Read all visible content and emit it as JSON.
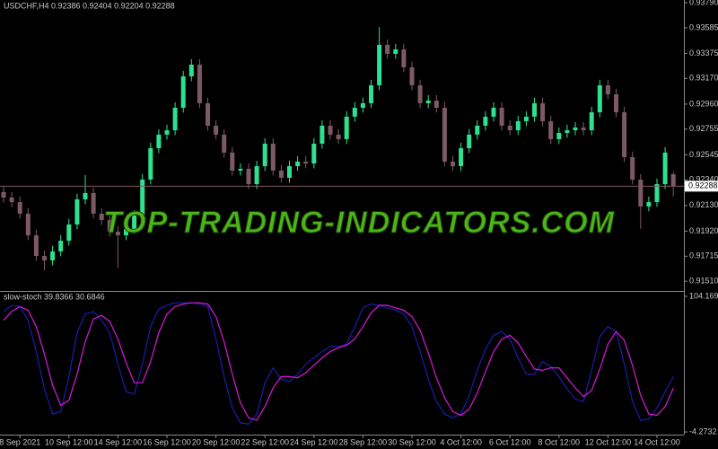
{
  "chart_data": [
    {
      "type": "candlestick",
      "title": "USDCHF,H4 0.92386 0.92404 0.92204 0.92288",
      "watermark": "TOP-TRADING-INDICATORS.COM",
      "categories": [
        null,
        null,
        "8 Sep 2021",
        null,
        null,
        null,
        null,
        null,
        "10 Sep 12:00",
        null,
        null,
        null,
        null,
        null,
        "14 Sep 12:00",
        null,
        null,
        null,
        null,
        null,
        "16 Sep 12:00",
        null,
        null,
        null,
        null,
        null,
        "20 Sep 12:00",
        null,
        null,
        null,
        null,
        null,
        "22 Sep 12:00",
        null,
        null,
        null,
        null,
        null,
        "24 Sep 12:00",
        null,
        null,
        null,
        null,
        null,
        "28 Sep 12:00",
        null,
        null,
        null,
        null,
        null,
        "30 Sep 12:00",
        null,
        null,
        null,
        null,
        null,
        "4 Oct 12:00",
        null,
        null,
        null,
        null,
        null,
        "6 Oct 12:00",
        null,
        null,
        null,
        null,
        null,
        "8 Oct 12:00",
        null,
        null,
        null,
        null,
        null,
        "12 Oct 12:00",
        null,
        null,
        null,
        null,
        null,
        "14 Oct 12:00",
        null,
        null
      ],
      "open": [
        0.9224,
        0.92195,
        0.92158,
        0.92063,
        0.91886,
        0.91717,
        0.91681,
        0.91754,
        0.91842,
        0.91975,
        0.9218,
        0.92232,
        0.92063,
        0.92011,
        0.91916,
        0.91886,
        0.91938,
        0.92048,
        0.92342,
        0.92599,
        0.9271,
        0.92746,
        0.9293,
        0.93187,
        0.93283,
        0.92967,
        0.92783,
        0.9271,
        0.92563,
        0.92416,
        0.9243,
        0.92305,
        0.92452,
        0.92636,
        0.92416,
        0.92357,
        0.92452,
        0.92489,
        0.92474,
        0.92636,
        0.92783,
        0.9271,
        0.92673,
        0.92857,
        0.9293,
        0.92967,
        0.93114,
        0.93445,
        0.93371,
        0.93408,
        0.93261,
        0.93114,
        0.92967,
        0.92989,
        0.9293,
        0.92489,
        0.92452,
        0.92599,
        0.9271,
        0.92783,
        0.92857,
        0.9293,
        0.92783,
        0.92746,
        0.9282,
        0.92857,
        0.92967,
        0.9282,
        0.92673,
        0.92724,
        0.92746,
        0.92768,
        0.92746,
        0.92893,
        0.93114,
        0.9304,
        0.92893,
        0.92526,
        0.92342,
        0.92122,
        0.92158,
        0.92305,
        0.92386
      ],
      "high": [
        0.92285,
        0.9224,
        0.92203,
        0.92108,
        0.91931,
        0.91762,
        0.91799,
        0.91887,
        0.9202,
        0.92225,
        0.9238,
        0.92277,
        0.92108,
        0.92056,
        0.91961,
        0.91983,
        0.92093,
        0.92387,
        0.92644,
        0.92755,
        0.92791,
        0.92975,
        0.93232,
        0.93328,
        0.93328,
        0.93012,
        0.92828,
        0.92755,
        0.92608,
        0.92475,
        0.92475,
        0.92497,
        0.92681,
        0.92681,
        0.92461,
        0.92497,
        0.92534,
        0.92534,
        0.92681,
        0.92828,
        0.92828,
        0.92755,
        0.92902,
        0.92975,
        0.93012,
        0.93159,
        0.9359,
        0.9349,
        0.93453,
        0.93453,
        0.93306,
        0.93159,
        0.93034,
        0.93034,
        0.92975,
        0.92534,
        0.92644,
        0.92755,
        0.92828,
        0.92902,
        0.92975,
        0.92975,
        0.92828,
        0.92865,
        0.92902,
        0.93012,
        0.93012,
        0.92865,
        0.92769,
        0.92791,
        0.92813,
        0.92813,
        0.92938,
        0.93159,
        0.93159,
        0.93085,
        0.92938,
        0.92571,
        0.92387,
        0.92203,
        0.9235,
        0.92608,
        0.92404
      ],
      "low": [
        0.92155,
        0.92118,
        0.92023,
        0.91846,
        0.91677,
        0.916,
        0.91641,
        0.91714,
        0.91802,
        0.91935,
        0.9214,
        0.92023,
        0.91971,
        0.91876,
        0.9162,
        0.91846,
        0.91898,
        0.92008,
        0.92302,
        0.92559,
        0.9267,
        0.92706,
        0.9289,
        0.93147,
        0.92927,
        0.92743,
        0.9267,
        0.92523,
        0.92376,
        0.92376,
        0.92265,
        0.92265,
        0.92412,
        0.92376,
        0.92317,
        0.92317,
        0.92412,
        0.92434,
        0.92434,
        0.92596,
        0.9267,
        0.92633,
        0.92633,
        0.92817,
        0.9289,
        0.92927,
        0.93074,
        0.93331,
        0.93331,
        0.93221,
        0.93074,
        0.92927,
        0.92927,
        0.9289,
        0.92449,
        0.92412,
        0.92412,
        0.92559,
        0.9267,
        0.92743,
        0.92817,
        0.92743,
        0.92706,
        0.92706,
        0.9278,
        0.92817,
        0.9278,
        0.92633,
        0.92633,
        0.92684,
        0.92706,
        0.92706,
        0.92706,
        0.92853,
        0.93,
        0.92853,
        0.92486,
        0.92302,
        0.9194,
        0.92082,
        0.92118,
        0.92265,
        0.92204
      ],
      "close": [
        0.92195,
        0.92158,
        0.92063,
        0.91886,
        0.91717,
        0.91681,
        0.91754,
        0.91842,
        0.91975,
        0.9218,
        0.92232,
        0.92063,
        0.92011,
        0.91916,
        0.91886,
        0.91938,
        0.92048,
        0.92342,
        0.92599,
        0.9271,
        0.92746,
        0.9293,
        0.93187,
        0.93283,
        0.92967,
        0.92783,
        0.9271,
        0.92563,
        0.92416,
        0.9243,
        0.92305,
        0.92452,
        0.92636,
        0.92416,
        0.92357,
        0.92452,
        0.92489,
        0.92474,
        0.92636,
        0.92783,
        0.9271,
        0.92673,
        0.92857,
        0.9293,
        0.92967,
        0.93114,
        0.93445,
        0.93371,
        0.93408,
        0.93261,
        0.93114,
        0.92967,
        0.92989,
        0.9293,
        0.92489,
        0.92452,
        0.92599,
        0.9271,
        0.92783,
        0.92857,
        0.9293,
        0.92783,
        0.92746,
        0.9282,
        0.92857,
        0.92967,
        0.9282,
        0.92673,
        0.92724,
        0.92746,
        0.92768,
        0.92746,
        0.92893,
        0.93114,
        0.9304,
        0.92893,
        0.92526,
        0.92342,
        0.92122,
        0.92158,
        0.92305,
        0.92563,
        0.92288
      ],
      "up_color": "#2ee08f",
      "down_color": "#7d5a63",
      "price_line_color": "#7d5a63",
      "ylim": [
        0.91438,
        0.93812
      ],
      "yticks": [
        {
          "value": 0.9379,
          "label": "0.93790"
        },
        {
          "value": 0.93585,
          "label": "0.93585"
        },
        {
          "value": 0.93375,
          "label": "0.93375"
        },
        {
          "value": 0.9317,
          "label": "0.93170"
        },
        {
          "value": 0.9296,
          "label": "0.92960"
        },
        {
          "value": 0.92755,
          "label": "0.92755"
        },
        {
          "value": 0.92545,
          "label": "0.92545"
        },
        {
          "value": 0.9234,
          "label": "0.92340"
        },
        {
          "value": 0.9213,
          "label": "0.92130"
        },
        {
          "value": 0.9192,
          "label": "0.91920"
        },
        {
          "value": 0.91715,
          "label": "0.91715"
        },
        {
          "value": 0.9151,
          "label": "0.91510"
        }
      ],
      "grid": false
    },
    {
      "type": "line",
      "title": "slow-stoch 39.8366 30.6846",
      "series": [
        {
          "color": "#1c1cb0",
          "values": [
            92,
            97,
            96,
            85,
            60,
            30,
            10,
            12,
            40,
            75,
            90,
            92,
            85,
            75,
            50,
            28,
            26,
            50,
            80,
            94,
            97,
            99,
            99,
            99,
            98,
            96,
            70,
            40,
            15,
            3,
            2,
            10,
            35,
            47,
            38,
            36,
            42,
            50,
            55,
            60,
            64,
            64,
            66,
            80,
            95,
            98,
            97,
            95,
            93,
            90,
            80,
            60,
            38,
            20,
            10,
            7,
            10,
            25,
            45,
            62,
            73,
            76,
            70,
            55,
            42,
            42,
            52,
            48,
            40,
            30,
            22,
            20,
            45,
            72,
            80,
            76,
            50,
            20,
            5,
            6,
            15,
            28,
            39.8366
          ]
        },
        {
          "color": "#d81ad8",
          "values": [
            85,
            92,
            96,
            93,
            80,
            58,
            33,
            17,
            21,
            42,
            68,
            86,
            89,
            84,
            70,
            51,
            35,
            35,
            52,
            75,
            90,
            96,
            98,
            99,
            99,
            98,
            88,
            68,
            42,
            19,
            7,
            5,
            16,
            31,
            40,
            40,
            39,
            43,
            49,
            55,
            60,
            63,
            65,
            70,
            80,
            91,
            97,
            97,
            95,
            93,
            88,
            77,
            59,
            39,
            23,
            12,
            9,
            14,
            27,
            44,
            60,
            70,
            73,
            67,
            56,
            46,
            45,
            47,
            47,
            39,
            31,
            24,
            29,
            46,
            66,
            76,
            69,
            49,
            25,
            10,
            9,
            16,
            30.6846
          ]
        }
      ],
      "ylim": [
        -4.2732,
        104.1694
      ],
      "yticks": [
        104.1694,
        -4.2732
      ],
      "grid": false
    }
  ]
}
